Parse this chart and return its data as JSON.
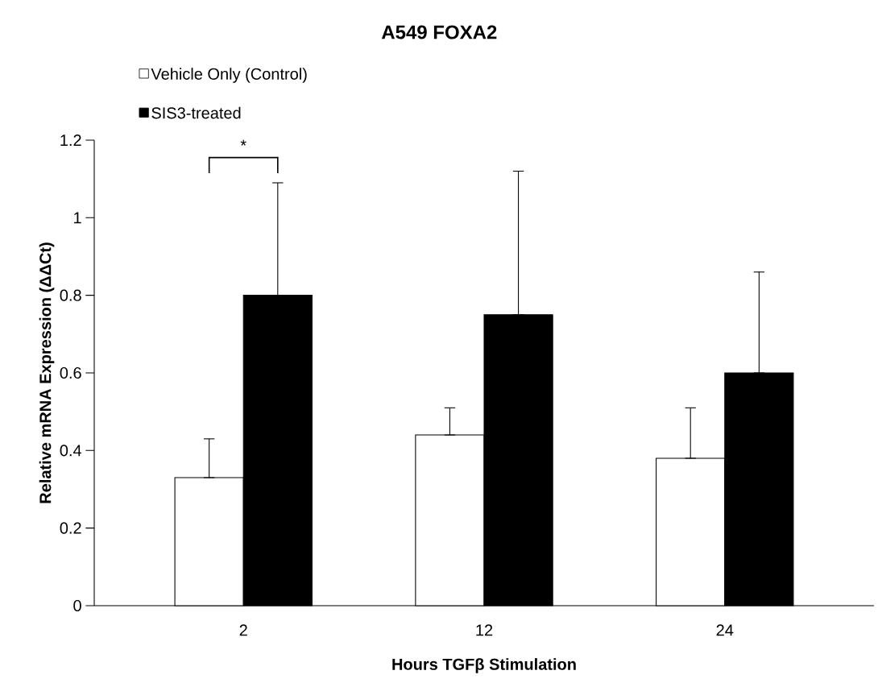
{
  "chart_data": {
    "type": "bar",
    "title": "A549 FOXA2",
    "xlabel": "Hours TGFβ Stimulation",
    "ylabel": "Relative mRNA Expression (ΔΔCt)",
    "categories": [
      "2",
      "12",
      "24"
    ],
    "series": [
      {
        "name": "Vehicle Only (Control)",
        "color": "#ffffff",
        "values": [
          0.33,
          0.44,
          0.38
        ],
        "errors": [
          [
            0.33,
            0.43
          ],
          [
            0.44,
            0.51
          ],
          [
            0.38,
            0.51
          ]
        ]
      },
      {
        "name": "SIS3-treated",
        "color": "#000000",
        "values": [
          0.8,
          0.75,
          0.6
        ],
        "errors": [
          [
            0.8,
            1.09
          ],
          [
            0.75,
            1.12
          ],
          [
            0.6,
            0.86
          ]
        ]
      }
    ],
    "ylim": [
      0,
      1.2
    ],
    "yticks": [
      0,
      0.2,
      0.4,
      0.6,
      0.8,
      1,
      1.2
    ],
    "annotations": [
      "*"
    ],
    "legend": "top left",
    "grid": false
  }
}
